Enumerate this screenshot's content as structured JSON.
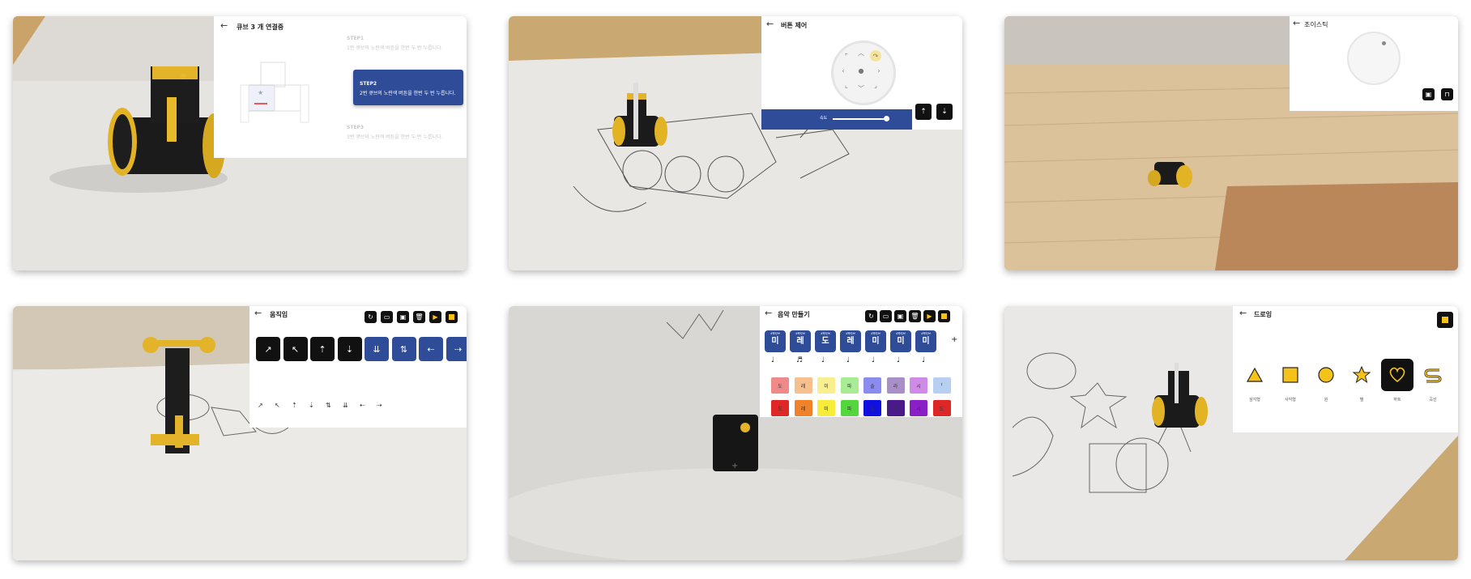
{
  "tiles": {
    "connect": {
      "back": "←",
      "title": "큐브 3 개 연결중",
      "steps": [
        {
          "head": "STEP1",
          "text": "1번 큐브의 노란색 버튼을 한번 두 번 누릅니다."
        },
        {
          "head": "STEP2",
          "text": "2번 큐브의 노란색 버튼을 한번 두 번 누릅니다."
        },
        {
          "head": "STEP3",
          "text": "3번 큐브의 노란색 버튼을 한번 두 번 누릅니다."
        }
      ],
      "colors": {
        "step_active": "#2f4c98",
        "cube_accent": "#e85a5a"
      }
    },
    "button_control": {
      "back": "←",
      "title": "버튼 제어",
      "speed_label": "속도",
      "speed_value": 0.9,
      "dpad_icons": [
        "arrow-up-left",
        "arrow-up",
        "rotate-right",
        "arrow-left",
        "center-dot",
        "arrow-right",
        "arrow-down-left",
        "arrow-down",
        "arrow-down-right"
      ],
      "colors": {
        "bar": "#2f4c98",
        "rotate_highlight": "#f6e49a"
      }
    },
    "joystick": {
      "back": "←",
      "title": "조이스틱"
    },
    "motion": {
      "back": "←",
      "title": "움직임",
      "toolbar": [
        "refresh-icon",
        "folder-icon",
        "save-icon",
        "trash-icon",
        "play-icon",
        "stop-icon"
      ],
      "motions": [
        {
          "glyph": "↗",
          "color": "#111111"
        },
        {
          "glyph": "↖",
          "color": "#111111"
        },
        {
          "glyph": "⇡",
          "color": "#111111"
        },
        {
          "glyph": "⇣",
          "color": "#111111"
        },
        {
          "glyph": "⇊",
          "color": "#2f4c98"
        },
        {
          "glyph": "⇅",
          "color": "#2f4c98"
        },
        {
          "glyph": "⇠",
          "color": "#2f4c98"
        },
        {
          "glyph": "⇢",
          "color": "#2f4c98"
        }
      ],
      "timeline": [
        "↗",
        "↖",
        "⇡",
        "⇣",
        "⇅",
        "⇊",
        "⇠",
        "⇢"
      ]
    },
    "music": {
      "back": "←",
      "title": "음악 만들기",
      "add": "+",
      "notes": [
        {
          "oct": "4옥타브",
          "name": "미",
          "dur": "♩"
        },
        {
          "oct": "4옥타브",
          "name": "레",
          "dur": "♬"
        },
        {
          "oct": "4옥타브",
          "name": "도",
          "dur": "♩"
        },
        {
          "oct": "4옥타브",
          "name": "레",
          "dur": "♩"
        },
        {
          "oct": "4옥타브",
          "name": "미",
          "dur": "♩"
        },
        {
          "oct": "4옥타브",
          "name": "미",
          "dur": "♩"
        },
        {
          "oct": "4옥타브",
          "name": "미",
          "dur": "♩"
        }
      ],
      "palette_top": [
        {
          "label": "도",
          "color": "#f08a8a"
        },
        {
          "label": "레",
          "color": "#f6c08e"
        },
        {
          "label": "미",
          "color": "#f8ef8e"
        },
        {
          "label": "파",
          "color": "#a8ec93"
        },
        {
          "label": "솔",
          "color": "#8c8cf0"
        },
        {
          "label": "라",
          "color": "#a98fc7"
        },
        {
          "label": "시",
          "color": "#cf8ce6"
        },
        {
          "label": "𝄽",
          "color": "#b7d0f2"
        }
      ],
      "palette_bottom": [
        {
          "label": "도",
          "color": "#e02727"
        },
        {
          "label": "레",
          "color": "#f0822c"
        },
        {
          "label": "미",
          "color": "#f6ec39"
        },
        {
          "label": "파",
          "color": "#54d63d"
        },
        {
          "label": "솔",
          "color": "#1010e0"
        },
        {
          "label": "라",
          "color": "#4a1a8a"
        },
        {
          "label": "시",
          "color": "#8a1fc6"
        },
        {
          "label": "도",
          "color": "#e02727"
        }
      ]
    },
    "drawing": {
      "back": "←",
      "title": "드로잉",
      "shapes": [
        {
          "icon": "triangle-icon",
          "label": "삼각형"
        },
        {
          "icon": "square-icon",
          "label": "사각형"
        },
        {
          "icon": "circle-icon",
          "label": "원"
        },
        {
          "icon": "star-icon",
          "label": "별"
        },
        {
          "icon": "heart-icon",
          "label": "하트"
        },
        {
          "icon": "curve-icon",
          "label": "곡선"
        }
      ],
      "selected": "하트",
      "colors": {
        "accent": "#f5c21a"
      }
    }
  }
}
